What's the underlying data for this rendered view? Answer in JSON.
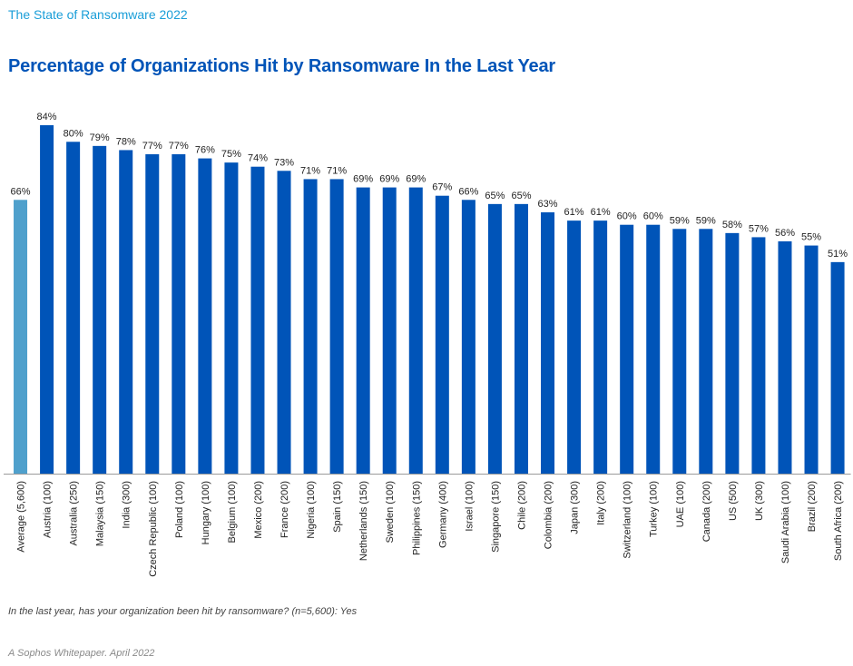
{
  "page": {
    "header": "The State of Ransomware 2022",
    "footnote": "In the last year, has your organization been hit by ransomware? (n=5,600): Yes",
    "source": "A Sophos Whitepaper. April 2022"
  },
  "chart_data": {
    "type": "bar",
    "title": "Percentage of Organizations Hit by Ransomware In the Last Year",
    "xlabel": "",
    "ylabel": "",
    "ylim": [
      0,
      100
    ],
    "grid": false,
    "unit": "%",
    "colors": {
      "default": "#0054b8",
      "highlight": "#4fa0cc"
    },
    "highlight_category": "Average (5,600)",
    "categories": [
      "Average (5,600)",
      "Austria (100)",
      "Australia (250)",
      "Malaysia (150)",
      "India (300)",
      "Czech Republic (100)",
      "Poland (100)",
      "Hungary (100)",
      "Belgium (100)",
      "Mexico (200)",
      "France (200)",
      "Nigeria (100)",
      "Spain (150)",
      "Netherlands (150)",
      "Sweden (100)",
      "Philippines (150)",
      "Germany (400)",
      "Israel (100)",
      "Singapore (150)",
      "Chile (200)",
      "Colombia (200)",
      "Japan (300)",
      "Italy (200)",
      "Switzerland (100)",
      "Turkey (100)",
      "UAE (100)",
      "Canada (200)",
      "US (500)",
      "UK (300)",
      "Saudi Arabia (100)",
      "Brazil (200)",
      "South Africa (200)"
    ],
    "values": [
      66,
      84,
      80,
      79,
      78,
      77,
      77,
      76,
      75,
      74,
      73,
      71,
      71,
      69,
      69,
      69,
      67,
      66,
      65,
      65,
      63,
      61,
      61,
      60,
      60,
      59,
      59,
      58,
      57,
      56,
      55,
      51
    ]
  }
}
